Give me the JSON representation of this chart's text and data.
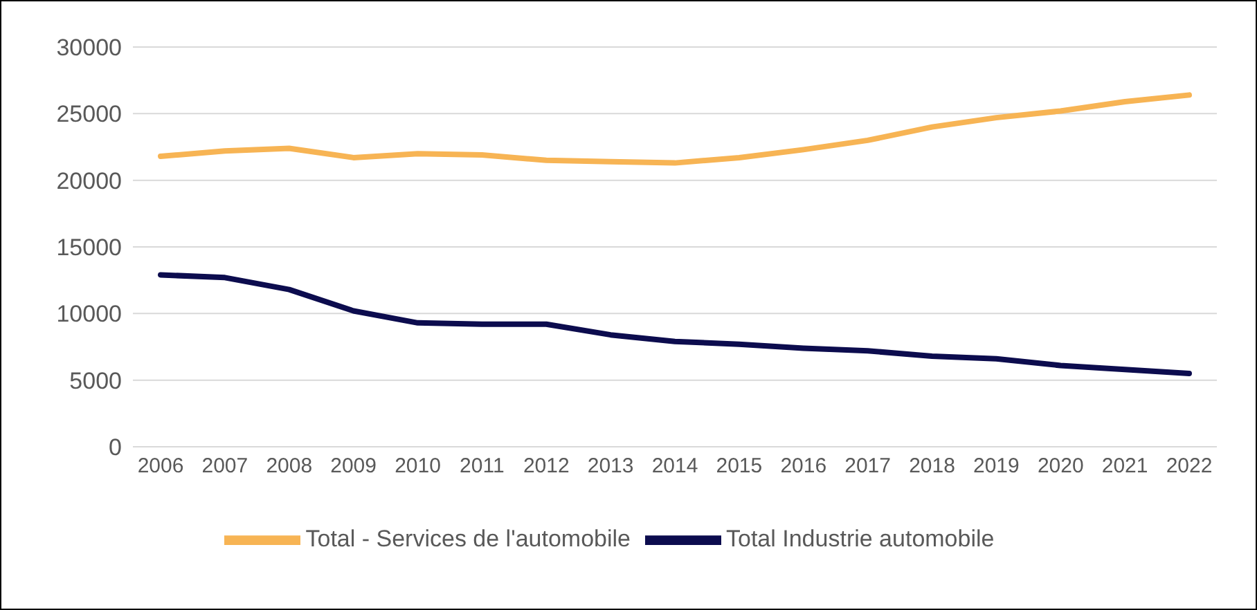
{
  "chart_data": {
    "type": "line",
    "categories": [
      "2006",
      "2007",
      "2008",
      "2009",
      "2010",
      "2011",
      "2012",
      "2013",
      "2014",
      "2015",
      "2016",
      "2017",
      "2018",
      "2019",
      "2020",
      "2021",
      "2022"
    ],
    "series": [
      {
        "name": "Total Industrie automobile",
        "color": "#0c0c4e",
        "values": [
          12900,
          12700,
          11800,
          10200,
          9300,
          9200,
          9200,
          8400,
          7900,
          7700,
          7400,
          7200,
          6800,
          6600,
          6100,
          5800,
          5500
        ]
      },
      {
        "name": "Total - Services de l'automobile",
        "color": "#f7b454",
        "values": [
          21800,
          22200,
          22400,
          21700,
          22000,
          21900,
          21500,
          21400,
          21300,
          21700,
          22300,
          23000,
          24000,
          24700,
          25200,
          25900,
          26400
        ]
      }
    ],
    "ylim": [
      0,
      30000
    ],
    "yticks": [
      0,
      5000,
      10000,
      15000,
      20000,
      25000,
      30000
    ],
    "grid": "y",
    "legend": "bottom",
    "marker": "none",
    "line_style": "solid"
  }
}
